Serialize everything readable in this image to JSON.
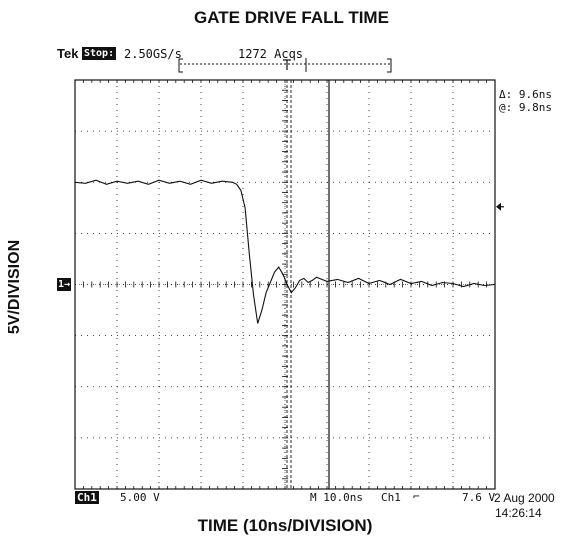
{
  "chart_data": {
    "type": "line",
    "title": "GATE DRIVE FALL TIME",
    "xlabel": "TIME (10ns/DIVISION)",
    "ylabel": "5V/DIVISION",
    "x_unit": "ns",
    "y_unit": "V",
    "xlim": [
      -42.5,
      57.5
    ],
    "ylim": [
      -20,
      20
    ],
    "grid": true,
    "series": [
      {
        "x": [
          -42.5,
          -40,
          -37.5,
          -35,
          -32.5,
          -30,
          -27.5,
          -25,
          -22.5,
          -20,
          -17.5,
          -15,
          -12.5,
          -10,
          -7.5,
          -5,
          -4,
          -3,
          -2,
          -1,
          0,
          1,
          2,
          3,
          4,
          5,
          6,
          7,
          8,
          9,
          10,
          11,
          12,
          13,
          14,
          15,
          17.5,
          20,
          22.5,
          25,
          27.5,
          30,
          32.5,
          35,
          37.5,
          40,
          42.5,
          45,
          47.5,
          50,
          52.5,
          55,
          57.5
        ],
        "values": [
          10,
          9.9,
          10.2,
          9.8,
          10.1,
          9.9,
          10.1,
          9.8,
          10.2,
          9.9,
          10.1,
          9.8,
          10.2,
          9.9,
          10.1,
          10,
          9.8,
          9.2,
          7.5,
          3,
          -1,
          -3.8,
          -2.5,
          -0.8,
          0.2,
          1.2,
          1.7,
          1,
          0,
          -0.8,
          -0.3,
          0.4,
          0.6,
          0.2,
          0.4,
          0.7,
          0.3,
          0.5,
          0.2,
          0.6,
          0.1,
          0.4,
          0,
          0.5,
          0.1,
          0.3,
          -0.1,
          0.2,
          0.1,
          -0.2,
          0.1,
          -0.1,
          0
        ]
      }
    ]
  },
  "header": {
    "brand": "Tek",
    "run_state": "Stop:",
    "sample_rate": "2.50GS/s",
    "acquisitions": "1272 Acqs"
  },
  "cursors": {
    "delta": "Δ: 9.6ns",
    "at": "@: 9.8ns"
  },
  "footer": {
    "channel": "Ch1",
    "volts_div": "5.00 V",
    "timebase": "M 10.0ns",
    "trigger_source": "Ch1",
    "trigger_slope_icon": "falling-edge",
    "trigger_level": "7.6 V",
    "date": "2 Aug 2000",
    "time": "14:26:14"
  },
  "markers": {
    "ground_ref": "1"
  },
  "colors": {
    "trace": "#111111",
    "grid": "#111111",
    "background": "#ffffff"
  }
}
